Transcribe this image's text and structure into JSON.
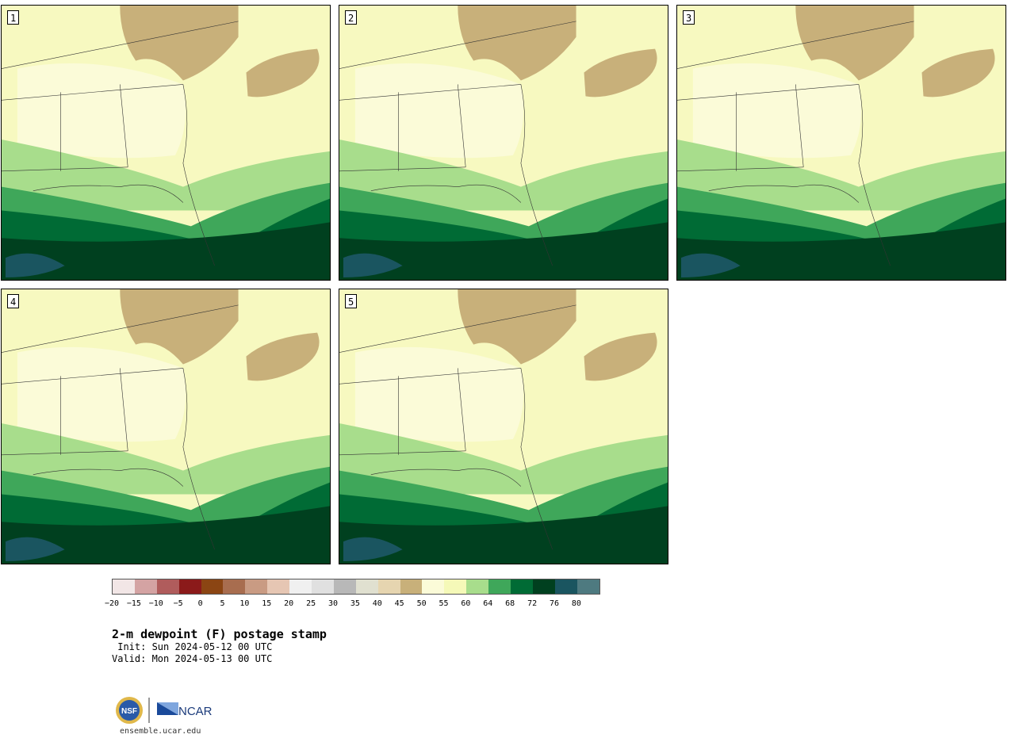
{
  "panels": [
    {
      "label": "1"
    },
    {
      "label": "2"
    },
    {
      "label": "3"
    },
    {
      "label": "4"
    },
    {
      "label": "5"
    }
  ],
  "colorbar": {
    "colors": [
      "#f2e6e6",
      "#d4a3a3",
      "#b05c5c",
      "#8b1a1a",
      "#8b4513",
      "#a86d4f",
      "#c99b83",
      "#e6c6b3",
      "#f0f0f0",
      "#e0e0e0",
      "#b8b8b8",
      "#e0e0d0",
      "#e6d5b0",
      "#c8b07a",
      "#fbfbd8",
      "#f5f9b8",
      "#a8dd8c",
      "#3fa75a",
      "#006b35",
      "#00401f",
      "#1a5560",
      "#4e7a80"
    ],
    "tick_labels": [
      "−20",
      "−15",
      "−10",
      "−5",
      "0",
      "5",
      "10",
      "15",
      "20",
      "25",
      "30",
      "35",
      "40",
      "45",
      "50",
      "55",
      "60",
      "64",
      "68",
      "72",
      "76",
      "80"
    ]
  },
  "title": "2-m dewpoint (F) postage stamp",
  "init": " Init: Sun 2024-05-12 00 UTC",
  "valid": "Valid: Mon 2024-05-13 00 UTC",
  "logos": {
    "nsf": "NSF",
    "ncar": "NCAR"
  },
  "url": "ensemble.ucar.edu"
}
